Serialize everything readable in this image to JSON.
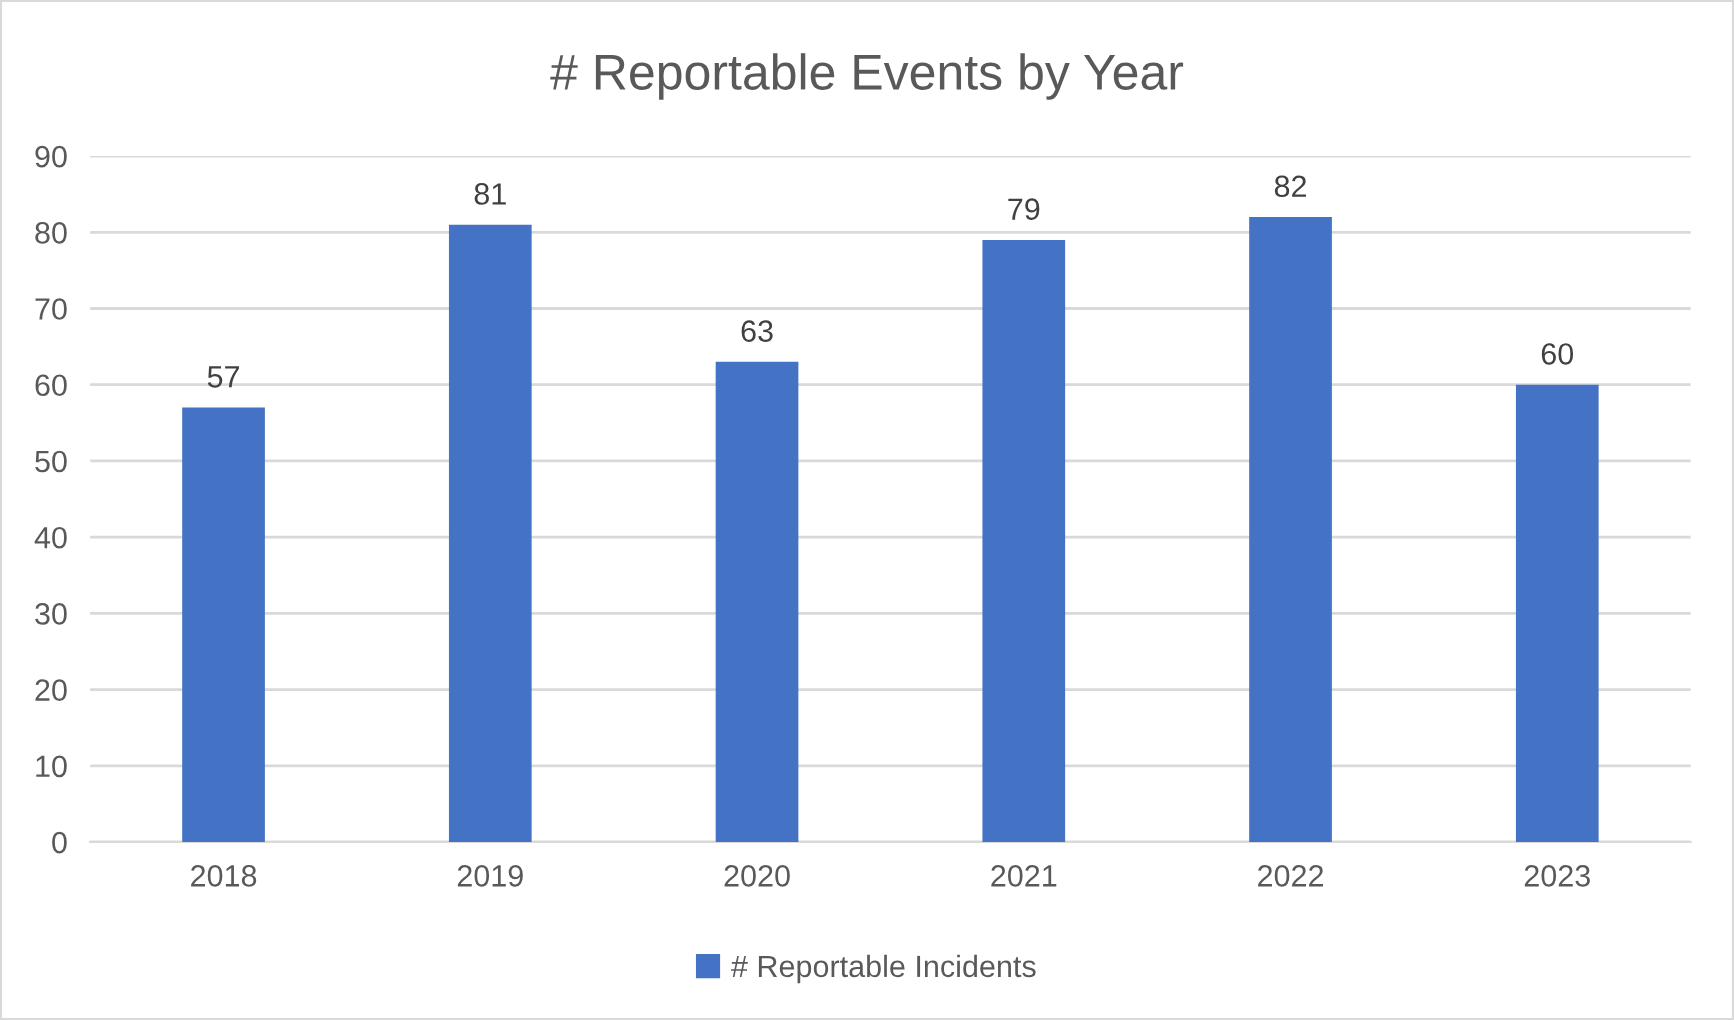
{
  "chart_data": {
    "type": "bar",
    "title": "# Reportable Events by Year",
    "categories": [
      "2018",
      "2019",
      "2020",
      "2021",
      "2022",
      "2023"
    ],
    "series": [
      {
        "name": "# Reportable Incidents",
        "color": "#4472c4",
        "values": [
          57,
          81,
          63,
          79,
          82,
          60
        ]
      }
    ],
    "ylim": [
      0,
      90
    ],
    "yticks": [
      0,
      10,
      20,
      30,
      40,
      50,
      60,
      70,
      80,
      90
    ],
    "grid": "y",
    "data_labels": true,
    "legend": "bottom"
  }
}
